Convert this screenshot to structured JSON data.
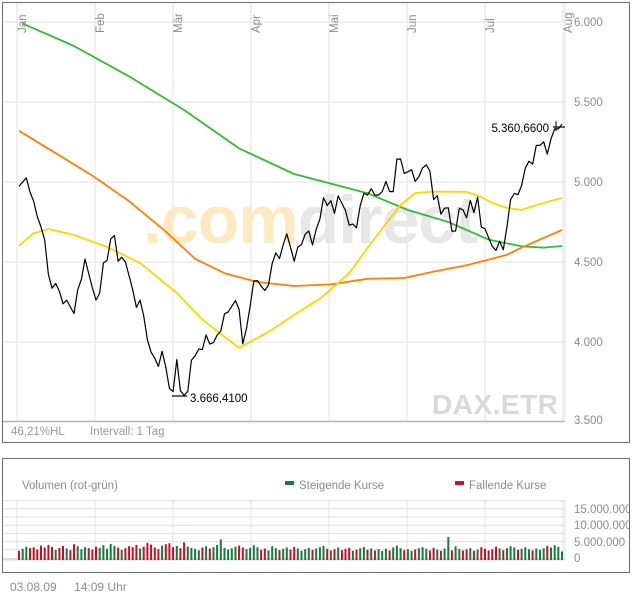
{
  "main_chart": {
    "x_tick_labels": [
      "Jan",
      "Feb",
      "Mär",
      "Apr",
      "Mai",
      "Jun",
      "Jul",
      "Aug"
    ],
    "y_tick_labels": [
      "6.000",
      "5.500",
      "5.000",
      "4.500",
      "4.000",
      "3.500"
    ],
    "annotation_high": "5.360,6600",
    "annotation_low": "3.666,4100",
    "footer_range": "46,21%HL",
    "footer_interval": "Intervall: 1 Tag",
    "symbol_watermark": "DAX.ETR",
    "brand_watermark_part1": ".com",
    "brand_watermark_part2": "direct"
  },
  "volume_panel": {
    "title": "Volumen (rot-grün)",
    "legend_up": "Steigende Kurse",
    "legend_down": "Fallende Kurse",
    "y_tick_labels": [
      "15.000.000",
      "10.000.000",
      "5.000.000",
      "0"
    ]
  },
  "footer": {
    "date": "03.08.09",
    "time": "14:09 Uhr"
  },
  "colors": {
    "price": "#000000",
    "ma_green": "#33bb33",
    "ma_orange": "#ff8000",
    "ma_yellow": "#ffd400",
    "volume_up": "#1a7a3c",
    "volume_down": "#c41126",
    "grid": "#e0e0e0",
    "axis": "#b3b3b3",
    "axis_text": "#8c8c8c",
    "watermark_yellow": "#ffe9c0",
    "watermark_gray": "#e7e7e7",
    "symbol_watermark": "#d9d9d9"
  },
  "chart_data": {
    "type": "line",
    "instrument": "DAX.ETR",
    "interval": "1 Tag",
    "x_months": [
      "Jan",
      "Feb",
      "Mär",
      "Apr",
      "Mai",
      "Jun",
      "Jul",
      "Aug"
    ],
    "y_axis_ticks": [
      6000,
      5500,
      5000,
      4500,
      4000,
      3500
    ],
    "y_range": [
      3500,
      6125
    ],
    "last_price": 5360.66,
    "low_price": 3666.41,
    "high_low_range_pct": "46,21%HL",
    "price": {
      "name": "DAX daily close",
      "color": "#000000",
      "values": [
        4973,
        5000,
        5026,
        4937,
        4879,
        4783,
        4719,
        4637,
        4422,
        4336,
        4366,
        4316,
        4239,
        4261,
        4219,
        4178,
        4326,
        4392,
        4519,
        4428,
        4338,
        4262,
        4306,
        4494,
        4510,
        4644,
        4666,
        4505,
        4530,
        4500,
        4413,
        4327,
        4216,
        4261,
        4164,
        4014,
        3936,
        3898,
        3847,
        3942,
        3843,
        3710,
        3690,
        3890,
        3695,
        3666,
        3692,
        3886,
        3914,
        3956,
        3953,
        4044,
        3987,
        3996,
        4043,
        4068,
        4176,
        4187,
        4223,
        4259,
        4203,
        3989,
        4085,
        4223,
        4381,
        4384,
        4349,
        4322,
        4356,
        4491,
        4557,
        4521,
        4609,
        4676,
        4592,
        4505,
        4593,
        4609,
        4674,
        4694,
        4607,
        4704,
        4769,
        4902,
        4853,
        4883,
        4804,
        4913,
        4866,
        4821,
        4730,
        4737,
        4714,
        4852,
        4930,
        4918,
        4958,
        4918,
        4918,
        4940,
        5004,
        4940,
        4940,
        5143,
        5144,
        5054,
        5064,
        5077,
        5004,
        5034,
        5088,
        5107,
        5069,
        4890,
        4915,
        4799,
        4837,
        4839,
        4693,
        4694,
        4836,
        4826,
        4776,
        4885,
        4808,
        4905,
        4718,
        4708,
        4652,
        4598,
        4572,
        4630,
        4576,
        4722,
        4890,
        4928,
        4921,
        4978,
        5088,
        5130,
        5111,
        5229,
        5229,
        5251,
        5174,
        5270,
        5332,
        5332,
        5361
      ]
    },
    "moving_averages": [
      {
        "name": "long-term-average",
        "color": "#33bb33",
        "days": [
          1,
          15,
          30,
          45,
          60,
          75,
          95,
          106,
          117,
          128,
          137,
          143,
          148
        ],
        "values": [
          5990,
          5850,
          5660,
          5450,
          5210,
          5050,
          4930,
          4825,
          4750,
          4640,
          4598,
          4590,
          4600
        ]
      },
      {
        "name": "medium-term-average",
        "color": "#ff8000",
        "days": [
          0,
          10,
          20,
          30,
          40,
          48,
          56,
          65,
          75,
          85,
          95,
          105,
          113,
          122,
          128,
          133,
          137,
          142,
          148
        ],
        "values": [
          5320,
          5180,
          5040,
          4880,
          4690,
          4520,
          4430,
          4375,
          4350,
          4360,
          4395,
          4400,
          4440,
          4480,
          4515,
          4545,
          4590,
          4640,
          4700
        ]
      },
      {
        "name": "short-term-average",
        "color": "#ffd400",
        "days": [
          0,
          4,
          8,
          15,
          24,
          33,
          43,
          50,
          55,
          60,
          68,
          75,
          82,
          90,
          96,
          104,
          108,
          113,
          122,
          126,
          129,
          133,
          137,
          141,
          148
        ],
        "values": [
          4600,
          4680,
          4706,
          4669,
          4594,
          4494,
          4306,
          4140,
          4050,
          3963,
          4063,
          4170,
          4270,
          4430,
          4619,
          4856,
          4931,
          4940,
          4938,
          4906,
          4869,
          4838,
          4825,
          4856,
          4900
        ]
      }
    ],
    "volume": {
      "unit": "millions",
      "axis_ticks": [
        15000000,
        10000000,
        5000000,
        0
      ],
      "y_range": [
        0,
        17500000
      ],
      "values": [
        2.8,
        3.4,
        4.1,
        3.6,
        3.9,
        3.2,
        4.4,
        3.8,
        4.6,
        4.0,
        3.1,
        3.7,
        4.3,
        3.5,
        3.0,
        4.8,
        4.2,
        3.3,
        3.9,
        3.6,
        3.2,
        4.1,
        3.7,
        4.5,
        3.4,
        4.9,
        4.3,
        3.8,
        3.1,
        3.6,
        4.2,
        3.9,
        4.6,
        3.5,
        4.1,
        5.2,
        4.7,
        3.8,
        3.3,
        4.4,
        4.8,
        5.1,
        3.9,
        4.3,
        3.6,
        5.4,
        4.1,
        3.7,
        3.4,
        3.0,
        3.8,
        4.2,
        3.5,
        3.9,
        4.6,
        6.3,
        3.7,
        3.2,
        3.6,
        4.1,
        4.4,
        3.8,
        3.3,
        3.7,
        4.5,
        3.9,
        3.1,
        3.5,
        2.9,
        4.2,
        3.6,
        3.0,
        3.4,
        3.8,
        3.2,
        4.0,
        3.5,
        2.8,
        3.3,
        3.7,
        3.1,
        3.5,
        3.9,
        4.3,
        3.4,
        2.9,
        3.3,
        3.8,
        3.0,
        3.4,
        3.7,
        2.8,
        3.2,
        3.6,
        4.0,
        3.1,
        3.5,
        2.9,
        3.3,
        2.7,
        3.4,
        2.9,
        3.8,
        4.4,
        3.6,
        3.0,
        3.3,
        2.8,
        3.2,
        3.6,
        3.9,
        3.4,
        2.9,
        3.7,
        3.2,
        2.8,
        3.5,
        7.0,
        2.9,
        4.2,
        3.4,
        2.9,
        3.3,
        3.6,
        2.8,
        3.2,
        3.9,
        3.4,
        2.9,
        3.3,
        4.1,
        3.5,
        3.0,
        3.6,
        4.2,
        3.8,
        3.1,
        3.4,
        3.9,
        3.3,
        2.9,
        3.5,
        3.1,
        3.6,
        4.3,
        3.8,
        4.5,
        4.0,
        2.6
      ]
    },
    "legend": [
      {
        "label": "Steigende Kurse",
        "color": "#1a7a3c",
        "position": "top"
      },
      {
        "label": "Fallende Kurse",
        "color": "#c41126",
        "position": "top"
      }
    ]
  }
}
